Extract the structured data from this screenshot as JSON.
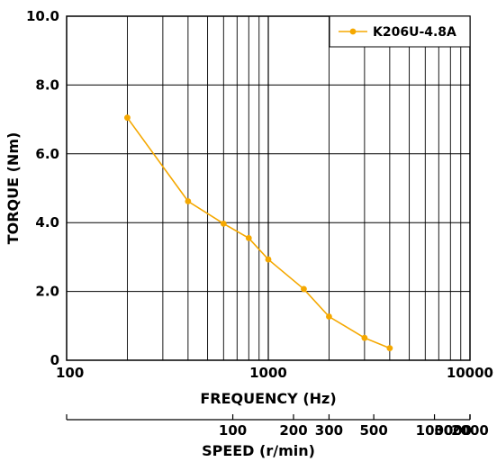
{
  "chart_data": {
    "type": "line",
    "x_scale": "log",
    "xlim": [
      100,
      10000
    ],
    "ylim": [
      0,
      10
    ],
    "x_ticks": [
      {
        "value": 100,
        "label": "100"
      },
      {
        "value": 1000,
        "label": "1000"
      },
      {
        "value": 10000,
        "label": "10000"
      }
    ],
    "y_ticks": [
      {
        "value": 0,
        "label": "0"
      },
      {
        "value": 2,
        "label": "2.0"
      },
      {
        "value": 4,
        "label": "4.0"
      },
      {
        "value": 6,
        "label": "6.0"
      },
      {
        "value": 8,
        "label": "8.0"
      },
      {
        "value": 10,
        "label": "10.0"
      }
    ],
    "xlabel": "FREQUENCY (Hz)",
    "ylabel": "TORQUE (Nm)",
    "grid": true,
    "legend_position": "top-right",
    "series": [
      {
        "name": "K206U-4.8A",
        "color": "#f5a800",
        "x": [
          200,
          400,
          600,
          800,
          1000,
          1500,
          2000,
          3000,
          4000
        ],
        "y": [
          7.05,
          4.62,
          3.97,
          3.55,
          2.93,
          2.07,
          1.27,
          0.65,
          0.35
        ]
      }
    ],
    "secondary_axis": {
      "label": "SPEED (r/min)",
      "scale": "log",
      "hz_per_rpm": 6.667,
      "ticks": [
        {
          "value": 100,
          "label": "100"
        },
        {
          "value": 200,
          "label": "200"
        },
        {
          "value": 300,
          "label": "300"
        },
        {
          "value": 500,
          "label": "500"
        },
        {
          "value": 1000,
          "label": "1000"
        },
        {
          "value": 2000,
          "label": "2000"
        },
        {
          "value": 3000,
          "label": "3000"
        }
      ]
    }
  }
}
